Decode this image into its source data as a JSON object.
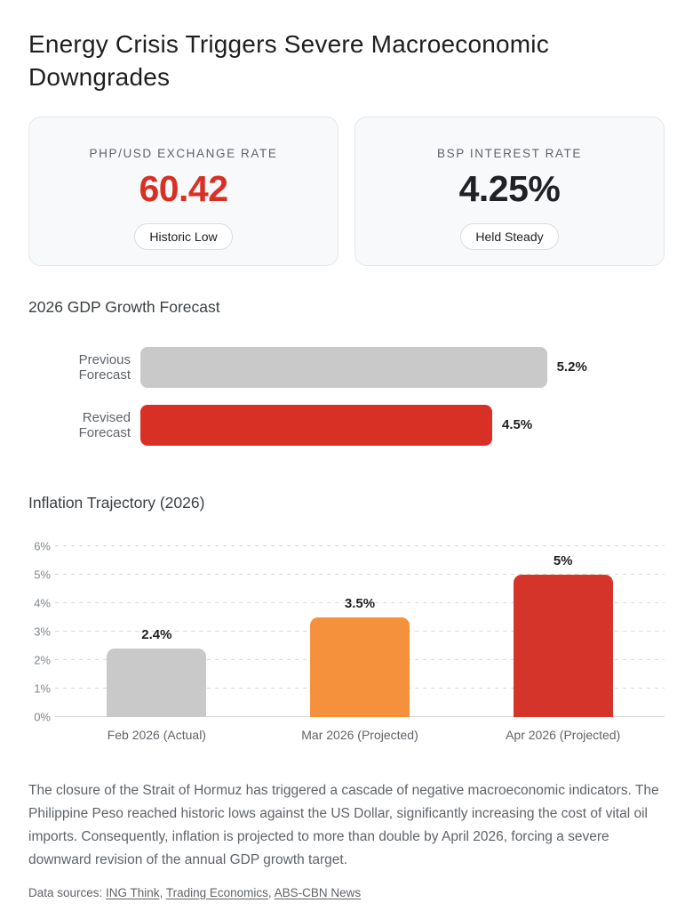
{
  "page": {
    "title": "Energy Crisis Triggers Severe Macroeconomic Downgrades"
  },
  "stat_cards": [
    {
      "label": "PHP/USD EXCHANGE RATE",
      "value": "60.42",
      "value_color": "#d93025",
      "badge": "Historic Low"
    },
    {
      "label": "BSP INTEREST RATE",
      "value": "4.25%",
      "value_color": "#202124",
      "badge": "Held Steady"
    }
  ],
  "chart_data": [
    {
      "type": "bar",
      "orientation": "horizontal",
      "title": "2026 GDP Growth Forecast",
      "categories": [
        "Previous Forecast",
        "Revised Forecast"
      ],
      "values": [
        5.2,
        4.5
      ],
      "value_labels": [
        "5.2%",
        "4.5%"
      ],
      "bar_colors": [
        "#c9c9c9",
        "#d93025"
      ],
      "value_axis_visible": false,
      "grid": false
    },
    {
      "type": "bar",
      "orientation": "vertical",
      "title": "Inflation Trajectory (2026)",
      "categories": [
        "Feb 2026 (Actual)",
        "Mar 2026 (Projected)",
        "Apr 2026 (Projected)"
      ],
      "values": [
        2.4,
        3.5,
        5
      ],
      "value_labels": [
        "2.4%",
        "3.5%",
        "5%"
      ],
      "bar_colors": [
        "#c9c9c9",
        "#f5913d",
        "#d5342b"
      ],
      "ylim": [
        0,
        6
      ],
      "ytick_labels": [
        "0%",
        "1%",
        "2%",
        "3%",
        "4%",
        "5%",
        "6%"
      ],
      "grid": true,
      "grid_style": "dashed"
    }
  ],
  "summary": {
    "text": "The closure of the Strait of Hormuz has triggered a cascade of negative macroeconomic indicators. The Philippine Peso reached historic lows against the US Dollar, significantly increasing the cost of vital oil imports. Consequently, inflation is projected to more than double by April 2026, forcing a severe downward revision of the annual GDP growth target."
  },
  "sources": {
    "prefix": "Data sources: ",
    "separator": ", ",
    "links": [
      "ING Think",
      "Trading Economics",
      "ABS-CBN News"
    ]
  },
  "colors": {
    "accent_red": "#d93025",
    "neutral_gray_bar": "#c9c9c9",
    "warning_orange_bar": "#f5913d",
    "danger_red_bar": "#d5342b",
    "card_background": "#f8f9fa",
    "muted_text": "#5f6368"
  }
}
